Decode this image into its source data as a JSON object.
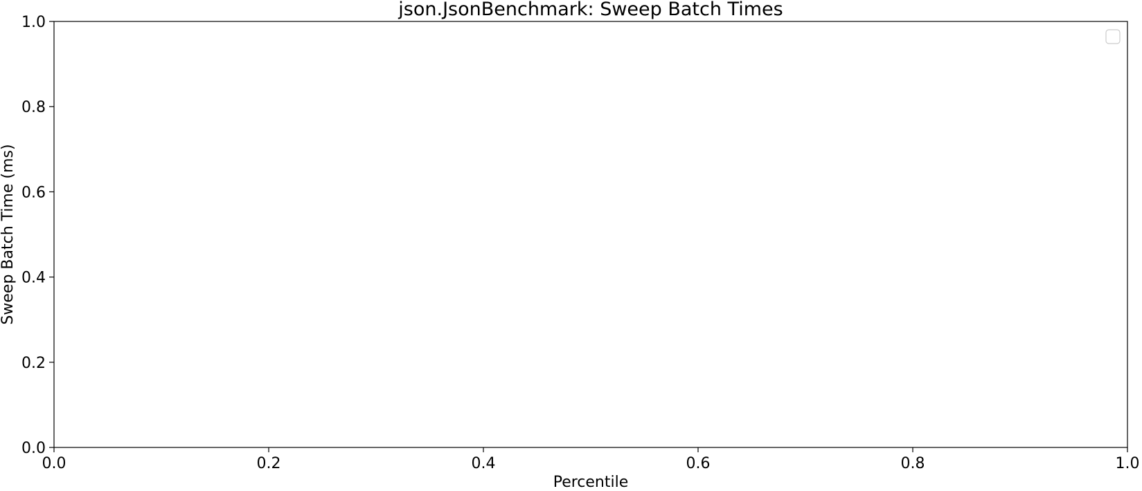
{
  "chart_data": {
    "type": "line",
    "title": "json.JsonBenchmark: Sweep Batch Times",
    "xlabel": "Percentile",
    "ylabel": "Sweep Batch Time (ms)",
    "xlim": [
      0.0,
      1.0
    ],
    "ylim": [
      0.0,
      1.0
    ],
    "xticks": [
      "0.0",
      "0.2",
      "0.4",
      "0.6",
      "0.8",
      "1.0"
    ],
    "yticks": [
      "0.0",
      "0.2",
      "0.4",
      "0.6",
      "0.8",
      "1.0"
    ],
    "grid": false,
    "legend": {
      "position": "top-right",
      "entries": []
    },
    "series": []
  },
  "colors": {
    "axes": "#000000",
    "background": "#ffffff",
    "legend_border": "#cccccc"
  }
}
